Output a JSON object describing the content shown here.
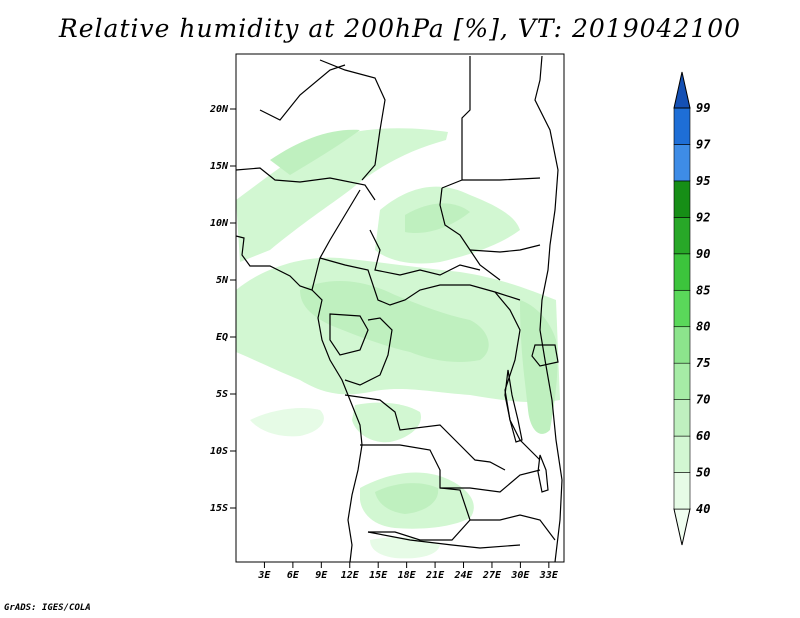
{
  "title": "Relative humidity at 200hPa [%], VT: 2019042100",
  "credit": "GrADS: IGES/COLA",
  "map": {
    "lat_labels": [
      {
        "lat": 20,
        "text": "20N"
      },
      {
        "lat": 15,
        "text": "15N"
      },
      {
        "lat": 10,
        "text": "10N"
      },
      {
        "lat": 5,
        "text": "5N"
      },
      {
        "lat": 0,
        "text": "EQ"
      },
      {
        "lat": -5,
        "text": "5S"
      },
      {
        "lat": -10,
        "text": "10S"
      },
      {
        "lat": -15,
        "text": "15S"
      }
    ],
    "lon_labels": [
      {
        "lon": 3,
        "text": "3E"
      },
      {
        "lon": 6,
        "text": "6E"
      },
      {
        "lon": 9,
        "text": "9E"
      },
      {
        "lon": 12,
        "text": "12E"
      },
      {
        "lon": 15,
        "text": "15E"
      },
      {
        "lon": 18,
        "text": "18E"
      },
      {
        "lon": 21,
        "text": "21E"
      },
      {
        "lon": 24,
        "text": "24E"
      },
      {
        "lon": 27,
        "text": "27E"
      },
      {
        "lon": 30,
        "text": "30E"
      },
      {
        "lon": 33,
        "text": "33E"
      }
    ]
  },
  "colorbar": {
    "levels": [
      "40",
      "50",
      "60",
      "70",
      "75",
      "80",
      "85",
      "90",
      "92",
      "95",
      "97",
      "99"
    ],
    "colors": [
      "#f0fdf0",
      "#e6fbe6",
      "#d2f7d2",
      "#bff0bf",
      "#a6eca6",
      "#8ce48c",
      "#5ad85a",
      "#3cc43c",
      "#28a828",
      "#168e16",
      "#3e8ce6",
      "#1e6ed6",
      "#1450b4"
    ]
  }
}
